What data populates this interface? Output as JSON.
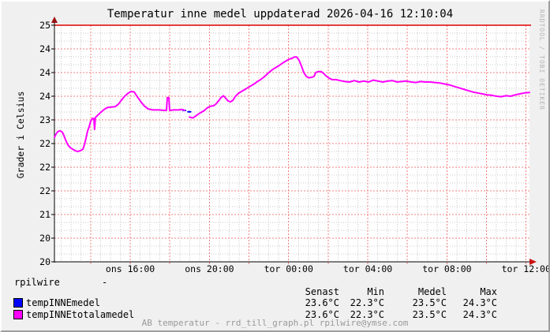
{
  "watermark": "RRDTOOL / TOBI OETIKER",
  "colors": {
    "background": "#f0f0f0",
    "plot_bg": "#ffffff",
    "grid_major": "#f08080",
    "grid_minor": "#c8c8c8",
    "hrule": "#e00000",
    "axis": "#000000",
    "arrow_up": "#991111",
    "arrow_right": "#cc1111",
    "series_blue": "#0000ff",
    "series_magenta": "#ff00ff",
    "muted_text": "#9a9a9a"
  },
  "chart_data": {
    "type": "line",
    "title": "Temperatur inne medel uppdaterad 2026-04-16 12:10:04",
    "ylabel": "Grader i Celsius",
    "ylim": [
      20,
      25
    ],
    "x_span_hours": 24,
    "grid": "on",
    "hrule_value": 25,
    "y_ticks": [
      {
        "v": 25.0,
        "label": "25"
      },
      {
        "v": 24.5,
        "label": "24"
      },
      {
        "v": 24.0,
        "label": "24"
      },
      {
        "v": 23.5,
        "label": "24"
      },
      {
        "v": 23.0,
        "label": "23"
      },
      {
        "v": 22.5,
        "label": "22"
      },
      {
        "v": 22.0,
        "label": "22"
      },
      {
        "v": 21.5,
        "label": "22"
      },
      {
        "v": 21.0,
        "label": "21"
      },
      {
        "v": 20.5,
        "label": "20"
      },
      {
        "v": 20.0,
        "label": "20"
      }
    ],
    "x_ticks": [
      {
        "t": 3.83,
        "label": "ons 16:00"
      },
      {
        "t": 7.83,
        "label": "ons 20:00"
      },
      {
        "t": 11.83,
        "label": "tor 00:00"
      },
      {
        "t": 15.83,
        "label": "tor 04:00"
      },
      {
        "t": 19.83,
        "label": "tor 08:00"
      },
      {
        "t": 23.83,
        "label": "tor 12:00"
      }
    ],
    "x_major_grid_first_hour": 1.83,
    "x_major_grid_step_hours": 2,
    "x_minor_grid_step_hours": 0.5,
    "y_major_grid_step": 0.5,
    "y_minor_grid_step": 0.1667,
    "series": [
      {
        "name": "tempINNEmedel",
        "color": "#0000ff",
        "segments": [
          [
            [
              6.5,
              23.2
            ],
            [
              6.62,
              23.2
            ]
          ],
          [
            [
              6.74,
              23.17
            ],
            [
              6.88,
              23.17
            ]
          ]
        ]
      },
      {
        "name": "tempINNEtotalamedel",
        "color": "#ff00ff",
        "segments": [
          [
            [
              0,
              22.63
            ],
            [
              0.08,
              22.7
            ],
            [
              0.16,
              22.75
            ],
            [
              0.28,
              22.77
            ],
            [
              0.4,
              22.74
            ],
            [
              0.48,
              22.67
            ],
            [
              0.56,
              22.58
            ],
            [
              0.68,
              22.47
            ],
            [
              0.8,
              22.41
            ],
            [
              0.92,
              22.38
            ],
            [
              1.04,
              22.35
            ],
            [
              1.16,
              22.33
            ],
            [
              1.32,
              22.35
            ],
            [
              1.44,
              22.38
            ],
            [
              1.52,
              22.48
            ],
            [
              1.6,
              22.62
            ],
            [
              1.67,
              22.76
            ],
            [
              1.75,
              22.85
            ],
            [
              1.83,
              22.97
            ],
            [
              1.91,
              23.03
            ],
            [
              1.99,
              23.03
            ],
            [
              2.03,
              22.8
            ],
            [
              2.07,
              23.05
            ],
            [
              2.19,
              23.1
            ],
            [
              2.35,
              23.16
            ],
            [
              2.51,
              23.22
            ],
            [
              2.67,
              23.26
            ],
            [
              2.87,
              23.27
            ],
            [
              3.07,
              23.28
            ],
            [
              3.23,
              23.33
            ],
            [
              3.39,
              23.42
            ],
            [
              3.55,
              23.5
            ],
            [
              3.71,
              23.56
            ],
            [
              3.87,
              23.6
            ],
            [
              4.03,
              23.59
            ],
            [
              4.15,
              23.51
            ],
            [
              4.27,
              23.44
            ],
            [
              4.39,
              23.37
            ],
            [
              4.55,
              23.29
            ],
            [
              4.74,
              23.23
            ],
            [
              4.98,
              23.21
            ],
            [
              5.3,
              23.21
            ],
            [
              5.54,
              23.2
            ],
            [
              5.66,
              23.2
            ],
            [
              5.7,
              23.47
            ],
            [
              5.78,
              23.47
            ],
            [
              5.82,
              23.2
            ],
            [
              6.02,
              23.21
            ],
            [
              6.26,
              23.21
            ],
            [
              6.46,
              23.22
            ],
            [
              6.58,
              23.2
            ]
          ],
          [
            [
              6.82,
              23.06
            ],
            [
              6.98,
              23.04
            ],
            [
              7.1,
              23.07
            ],
            [
              7.26,
              23.12
            ],
            [
              7.42,
              23.16
            ],
            [
              7.58,
              23.2
            ],
            [
              7.74,
              23.26
            ],
            [
              7.9,
              23.29
            ],
            [
              8.05,
              23.3
            ],
            [
              8.17,
              23.34
            ],
            [
              8.29,
              23.4
            ],
            [
              8.41,
              23.47
            ],
            [
              8.53,
              23.51
            ],
            [
              8.65,
              23.46
            ],
            [
              8.77,
              23.4
            ],
            [
              8.89,
              23.38
            ],
            [
              9.01,
              23.41
            ],
            [
              9.13,
              23.49
            ],
            [
              9.29,
              23.56
            ],
            [
              9.45,
              23.6
            ],
            [
              9.61,
              23.64
            ],
            [
              9.77,
              23.68
            ],
            [
              9.93,
              23.72
            ],
            [
              10.09,
              23.76
            ],
            [
              10.25,
              23.81
            ],
            [
              10.41,
              23.85
            ],
            [
              10.57,
              23.9
            ],
            [
              10.73,
              23.96
            ],
            [
              10.89,
              24.02
            ],
            [
              11.04,
              24.07
            ],
            [
              11.2,
              24.11
            ],
            [
              11.36,
              24.15
            ],
            [
              11.52,
              24.2
            ],
            [
              11.68,
              24.24
            ],
            [
              11.84,
              24.28
            ],
            [
              12.0,
              24.3
            ],
            [
              12.12,
              24.33
            ],
            [
              12.24,
              24.33
            ],
            [
              12.36,
              24.26
            ],
            [
              12.48,
              24.14
            ],
            [
              12.6,
              24.0
            ],
            [
              12.72,
              23.92
            ],
            [
              12.84,
              23.89
            ],
            [
              13.0,
              23.9
            ],
            [
              13.12,
              23.92
            ],
            [
              13.2,
              24.0
            ],
            [
              13.32,
              24.02
            ],
            [
              13.48,
              24.02
            ],
            [
              13.6,
              23.98
            ],
            [
              13.72,
              23.93
            ],
            [
              13.88,
              23.88
            ],
            [
              14.04,
              23.85
            ],
            [
              14.23,
              23.85
            ],
            [
              14.43,
              23.83
            ],
            [
              14.67,
              23.81
            ],
            [
              14.91,
              23.8
            ],
            [
              15.15,
              23.83
            ],
            [
              15.39,
              23.8
            ],
            [
              15.63,
              23.82
            ],
            [
              15.87,
              23.8
            ],
            [
              16.11,
              23.84
            ],
            [
              16.35,
              23.82
            ],
            [
              16.59,
              23.8
            ],
            [
              16.83,
              23.82
            ],
            [
              17.07,
              23.83
            ],
            [
              17.31,
              23.8
            ],
            [
              17.54,
              23.81
            ],
            [
              17.78,
              23.82
            ],
            [
              18.02,
              23.8
            ],
            [
              18.26,
              23.79
            ],
            [
              18.5,
              23.81
            ],
            [
              18.74,
              23.8
            ],
            [
              18.98,
              23.8
            ],
            [
              19.22,
              23.79
            ],
            [
              19.46,
              23.78
            ],
            [
              19.7,
              23.76
            ],
            [
              19.94,
              23.74
            ],
            [
              20.18,
              23.71
            ],
            [
              20.41,
              23.68
            ],
            [
              20.65,
              23.65
            ],
            [
              20.89,
              23.62
            ],
            [
              21.13,
              23.59
            ],
            [
              21.37,
              23.57
            ],
            [
              21.61,
              23.55
            ],
            [
              21.85,
              23.53
            ],
            [
              22.09,
              23.52
            ],
            [
              22.33,
              23.5
            ],
            [
              22.57,
              23.49
            ],
            [
              22.81,
              23.51
            ],
            [
              23.05,
              23.5
            ],
            [
              23.29,
              23.53
            ],
            [
              23.52,
              23.55
            ],
            [
              23.76,
              23.57
            ],
            [
              24.0,
              23.58
            ]
          ]
        ]
      }
    ]
  },
  "legend": {
    "source_label": "rpilwire",
    "source_value": "-",
    "columns": [
      "Senast",
      "Min",
      "Medel",
      "Max"
    ],
    "rows": [
      {
        "swatch": "#0000ff",
        "label": "tempINNEmedel",
        "values": [
          "23.6°C",
          "22.3°C",
          "23.5°C",
          "24.3°C"
        ]
      },
      {
        "swatch": "#ff00ff",
        "label": "tempINNEtotalamedel",
        "values": [
          "23.6°C",
          "22.3°C",
          "23.5°C",
          "24.3°C"
        ]
      }
    ],
    "footer": "AB temperatur - rrd_till_graph.pl rpilwire@ymse.com"
  }
}
